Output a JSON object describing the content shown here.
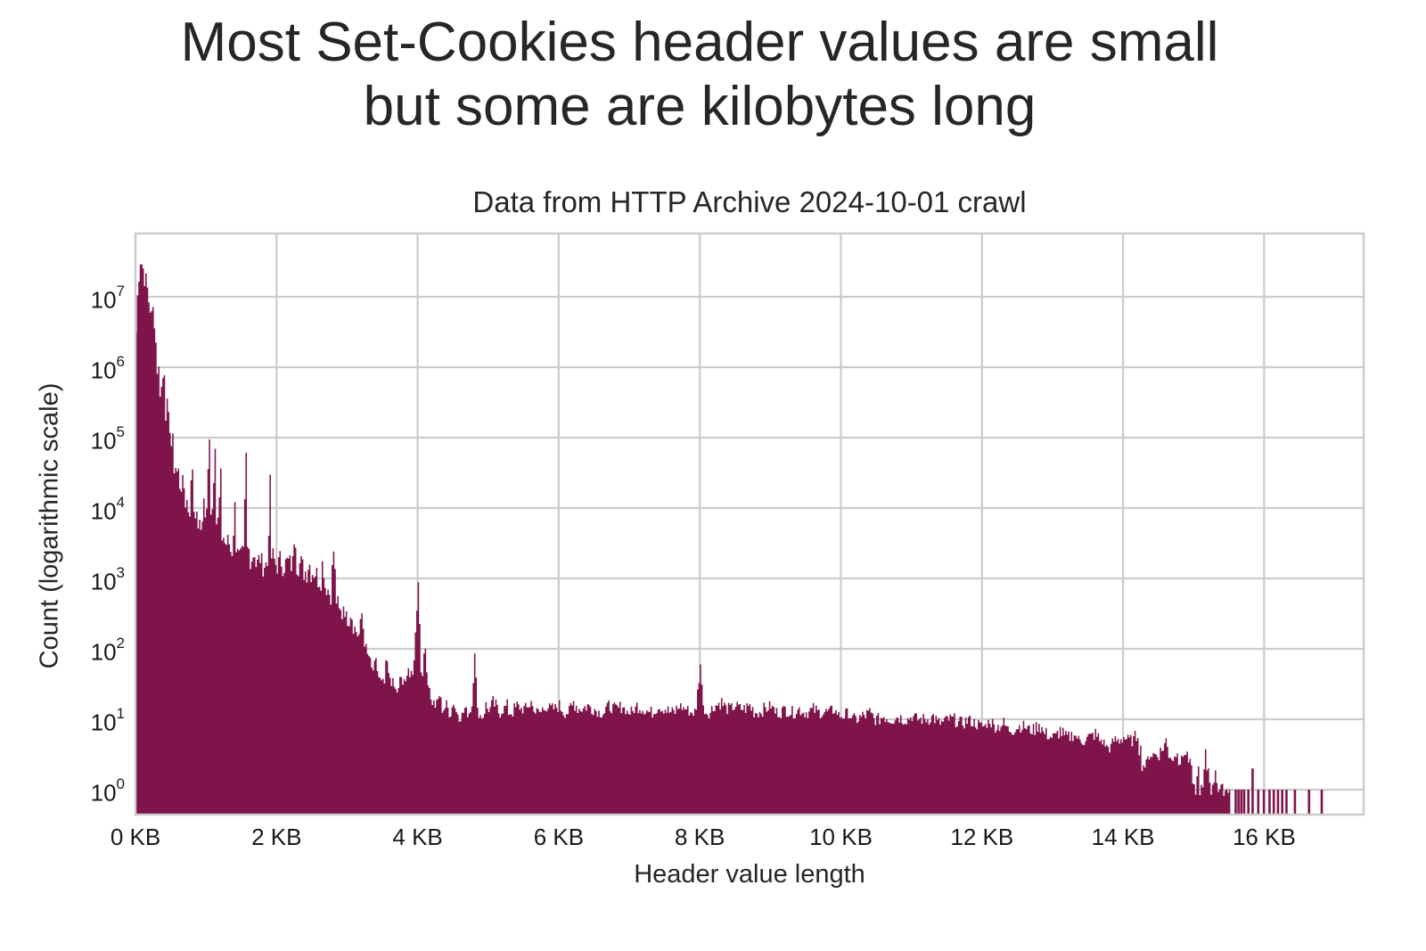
{
  "title_line1": "Most Set-Cookies header values are small",
  "title_line2": "but some are kilobytes long",
  "subtitle": "Data from HTTP Archive 2024-10-01 crawl",
  "colors": {
    "bar": "#7f144b",
    "grid": "#cccccc",
    "background": "#ffffff"
  },
  "chart_data": {
    "type": "bar",
    "title": "Most Set-Cookies header values are small but some are kilobytes long",
    "subtitle": "Data from HTTP Archive 2024-10-01 crawl",
    "xlabel": "Header value length",
    "ylabel": "Count (logarithmic scale)",
    "yscale": "log",
    "xlim_kb": [
      0,
      17.4
    ],
    "ylim": [
      0.45,
      80000000
    ],
    "grid": true,
    "legend": null,
    "x_ticks": [
      "0 KB",
      "2 KB",
      "4 KB",
      "6 KB",
      "8 KB",
      "10 KB",
      "12 KB",
      "14 KB",
      "16 KB"
    ],
    "y_ticks": [
      {
        "base": "10",
        "exp": "0"
      },
      {
        "base": "10",
        "exp": "1"
      },
      {
        "base": "10",
        "exp": "2"
      },
      {
        "base": "10",
        "exp": "3"
      },
      {
        "base": "10",
        "exp": "4"
      },
      {
        "base": "10",
        "exp": "5"
      },
      {
        "base": "10",
        "exp": "6"
      },
      {
        "base": "10",
        "exp": "7"
      }
    ],
    "bin_width_kb": 0.02,
    "series_log10_by_kb": [
      [
        0.0,
        6.5
      ],
      [
        0.02,
        7.0
      ],
      [
        0.04,
        7.35
      ],
      [
        0.06,
        7.55
      ],
      [
        0.08,
        7.48
      ],
      [
        0.1,
        7.4
      ],
      [
        0.12,
        7.3
      ],
      [
        0.14,
        7.2
      ],
      [
        0.16,
        7.1
      ],
      [
        0.18,
        6.95
      ],
      [
        0.2,
        6.85
      ],
      [
        0.22,
        6.7
      ],
      [
        0.24,
        6.8
      ],
      [
        0.26,
        6.7
      ],
      [
        0.3,
        6.0
      ],
      [
        0.32,
        5.95
      ],
      [
        0.36,
        5.7
      ],
      [
        0.4,
        6.0
      ],
      [
        0.44,
        5.4
      ],
      [
        0.48,
        5.2
      ],
      [
        0.52,
        4.9
      ],
      [
        0.56,
        4.6
      ],
      [
        0.6,
        4.5
      ],
      [
        0.64,
        4.35
      ],
      [
        0.68,
        4.3
      ],
      [
        0.72,
        4.1
      ],
      [
        0.76,
        4.0
      ],
      [
        0.8,
        4.6
      ],
      [
        0.84,
        4.0
      ],
      [
        0.88,
        3.8
      ],
      [
        0.92,
        3.7
      ],
      [
        0.96,
        4.1
      ],
      [
        1.0,
        3.9
      ],
      [
        1.04,
        5.1
      ],
      [
        1.08,
        4.0
      ],
      [
        1.12,
        5.0
      ],
      [
        1.16,
        3.8
      ],
      [
        1.2,
        4.4
      ],
      [
        1.24,
        3.6
      ],
      [
        1.28,
        3.5
      ],
      [
        1.32,
        3.5
      ],
      [
        1.36,
        3.4
      ],
      [
        1.4,
        4.0
      ],
      [
        1.44,
        3.5
      ],
      [
        1.48,
        3.3
      ],
      [
        1.52,
        3.3
      ],
      [
        1.56,
        4.7
      ],
      [
        1.6,
        3.4
      ],
      [
        1.64,
        3.3
      ],
      [
        1.68,
        3.4
      ],
      [
        1.72,
        3.2
      ],
      [
        1.76,
        3.3
      ],
      [
        1.8,
        3.2
      ],
      [
        1.84,
        3.2
      ],
      [
        1.9,
        4.3
      ],
      [
        1.94,
        3.3
      ],
      [
        2.0,
        3.2
      ],
      [
        2.05,
        3.3
      ],
      [
        2.1,
        3.2
      ],
      [
        2.15,
        3.25
      ],
      [
        2.2,
        3.2
      ],
      [
        2.25,
        4.0
      ],
      [
        2.3,
        3.2
      ],
      [
        2.35,
        3.2
      ],
      [
        2.4,
        3.1
      ],
      [
        2.45,
        3.3
      ],
      [
        2.5,
        3.1
      ],
      [
        2.55,
        3.1
      ],
      [
        2.6,
        3.0
      ],
      [
        2.65,
        3.4
      ],
      [
        2.7,
        2.9
      ],
      [
        2.75,
        2.8
      ],
      [
        2.8,
        3.4
      ],
      [
        2.85,
        2.7
      ],
      [
        2.9,
        2.5
      ],
      [
        2.95,
        2.8
      ],
      [
        3.0,
        2.4
      ],
      [
        3.05,
        2.6
      ],
      [
        3.1,
        2.3
      ],
      [
        3.15,
        2.2
      ],
      [
        3.2,
        2.5
      ],
      [
        3.25,
        2.1
      ],
      [
        3.3,
        1.9
      ],
      [
        3.35,
        1.7
      ],
      [
        3.4,
        1.8
      ],
      [
        3.45,
        1.6
      ],
      [
        3.5,
        1.5
      ],
      [
        3.55,
        2.0
      ],
      [
        3.6,
        1.6
      ],
      [
        3.65,
        1.5
      ],
      [
        3.7,
        1.4
      ],
      [
        3.75,
        1.7
      ],
      [
        3.8,
        1.5
      ],
      [
        3.85,
        1.9
      ],
      [
        3.9,
        1.6
      ],
      [
        3.95,
        2.2
      ],
      [
        4.0,
        3.0
      ],
      [
        4.05,
        1.7
      ],
      [
        4.1,
        2.0
      ],
      [
        4.15,
        1.5
      ],
      [
        4.2,
        1.25
      ],
      [
        4.25,
        1.2
      ],
      [
        4.3,
        1.35
      ],
      [
        4.35,
        1.15
      ],
      [
        4.4,
        1.2
      ],
      [
        4.45,
        1.1
      ],
      [
        4.5,
        1.25
      ],
      [
        4.55,
        1.1
      ],
      [
        4.6,
        1.05
      ],
      [
        4.65,
        1.15
      ],
      [
        4.7,
        1.1
      ],
      [
        4.75,
        1.2
      ],
      [
        4.8,
        2.0
      ],
      [
        4.85,
        1.1
      ],
      [
        4.9,
        1.05
      ],
      [
        4.95,
        1.2
      ],
      [
        5.0,
        1.15
      ],
      [
        5.05,
        1.25
      ],
      [
        5.1,
        1.2
      ],
      [
        5.15,
        1.1
      ],
      [
        5.2,
        1.15
      ],
      [
        5.25,
        1.2
      ],
      [
        5.3,
        1.1
      ],
      [
        5.4,
        1.2
      ],
      [
        5.5,
        1.15
      ],
      [
        5.6,
        1.25
      ],
      [
        5.7,
        1.1
      ],
      [
        5.8,
        1.2
      ],
      [
        5.9,
        1.15
      ],
      [
        6.0,
        1.2
      ],
      [
        6.1,
        1.1
      ],
      [
        6.2,
        1.25
      ],
      [
        6.3,
        1.15
      ],
      [
        6.4,
        1.2
      ],
      [
        6.5,
        1.15
      ],
      [
        6.6,
        1.1
      ],
      [
        6.7,
        1.2
      ],
      [
        6.8,
        1.15
      ],
      [
        6.9,
        1.2
      ],
      [
        7.0,
        1.1
      ],
      [
        7.1,
        1.2
      ],
      [
        7.2,
        1.15
      ],
      [
        7.3,
        1.1
      ],
      [
        7.4,
        1.2
      ],
      [
        7.5,
        1.15
      ],
      [
        7.6,
        1.1
      ],
      [
        7.7,
        1.2
      ],
      [
        7.8,
        1.15
      ],
      [
        7.9,
        1.1
      ],
      [
        8.0,
        1.85
      ],
      [
        8.05,
        1.15
      ],
      [
        8.1,
        1.1
      ],
      [
        8.2,
        1.2
      ],
      [
        8.3,
        1.25
      ],
      [
        8.4,
        1.15
      ],
      [
        8.5,
        1.2
      ],
      [
        8.6,
        1.15
      ],
      [
        8.7,
        1.2
      ],
      [
        8.8,
        1.1
      ],
      [
        8.9,
        1.15
      ],
      [
        9.0,
        1.2
      ],
      [
        9.1,
        1.1
      ],
      [
        9.2,
        1.15
      ],
      [
        9.3,
        1.1
      ],
      [
        9.4,
        1.15
      ],
      [
        9.5,
        1.1
      ],
      [
        9.6,
        1.15
      ],
      [
        9.7,
        1.1
      ],
      [
        9.8,
        1.1
      ],
      [
        9.9,
        1.15
      ],
      [
        10.0,
        1.05
      ],
      [
        10.1,
        1.1
      ],
      [
        10.2,
        1.0
      ],
      [
        10.3,
        1.05
      ],
      [
        10.4,
        1.1
      ],
      [
        10.5,
        1.0
      ],
      [
        10.6,
        1.05
      ],
      [
        10.7,
        1.0
      ],
      [
        10.8,
        1.05
      ],
      [
        10.9,
        1.0
      ],
      [
        11.0,
        1.05
      ],
      [
        11.1,
        1.0
      ],
      [
        11.2,
        1.0
      ],
      [
        11.3,
        1.05
      ],
      [
        11.4,
        0.95
      ],
      [
        11.5,
        1.0
      ],
      [
        11.6,
        1.0
      ],
      [
        11.7,
        0.95
      ],
      [
        11.8,
        1.0
      ],
      [
        11.9,
        0.95
      ],
      [
        12.0,
        0.9
      ],
      [
        12.1,
        1.0
      ],
      [
        12.2,
        0.9
      ],
      [
        12.3,
        0.95
      ],
      [
        12.4,
        0.85
      ],
      [
        12.5,
        0.9
      ],
      [
        12.6,
        0.9
      ],
      [
        12.7,
        0.85
      ],
      [
        12.8,
        0.95
      ],
      [
        12.9,
        0.8
      ],
      [
        13.0,
        0.75
      ],
      [
        13.1,
        0.85
      ],
      [
        13.2,
        0.75
      ],
      [
        13.3,
        0.8
      ],
      [
        13.4,
        0.7
      ],
      [
        13.5,
        0.75
      ],
      [
        13.6,
        0.8
      ],
      [
        13.7,
        0.7
      ],
      [
        13.8,
        0.6
      ],
      [
        13.85,
        0.7
      ],
      [
        13.9,
        0.7
      ],
      [
        14.0,
        0.75
      ],
      [
        14.1,
        0.7
      ],
      [
        14.2,
        0.8
      ],
      [
        14.3,
        0.35
      ],
      [
        14.35,
        0.5
      ],
      [
        14.45,
        0.5
      ],
      [
        14.55,
        0.6
      ],
      [
        14.6,
        0.7
      ],
      [
        14.65,
        0.5
      ],
      [
        14.7,
        0.45
      ],
      [
        14.75,
        0.6
      ],
      [
        14.8,
        0.4
      ],
      [
        14.85,
        0.55
      ],
      [
        14.9,
        0.5
      ],
      [
        14.95,
        0.35
      ],
      [
        15.0,
        0.0
      ],
      [
        15.05,
        0.3
      ],
      [
        15.1,
        0.0
      ],
      [
        15.15,
        0.5
      ],
      [
        15.2,
        0.3
      ],
      [
        15.25,
        0.0
      ],
      [
        15.3,
        0.3
      ],
      [
        15.35,
        0.0
      ],
      [
        15.4,
        0.0
      ],
      [
        15.45,
        0.0
      ],
      [
        15.5,
        0.0
      ]
    ],
    "sparse_tail_bins_kb": [
      15.58,
      15.62,
      15.66,
      15.7,
      15.76,
      15.82,
      15.9,
      15.98,
      16.06,
      16.12,
      16.18,
      16.24,
      16.3,
      16.42,
      16.62,
      16.8
    ],
    "sparse_tail_log10": [
      0,
      0,
      0,
      0,
      0,
      0.3,
      0,
      0,
      0,
      0,
      0,
      0,
      0,
      0,
      0,
      0
    ]
  }
}
